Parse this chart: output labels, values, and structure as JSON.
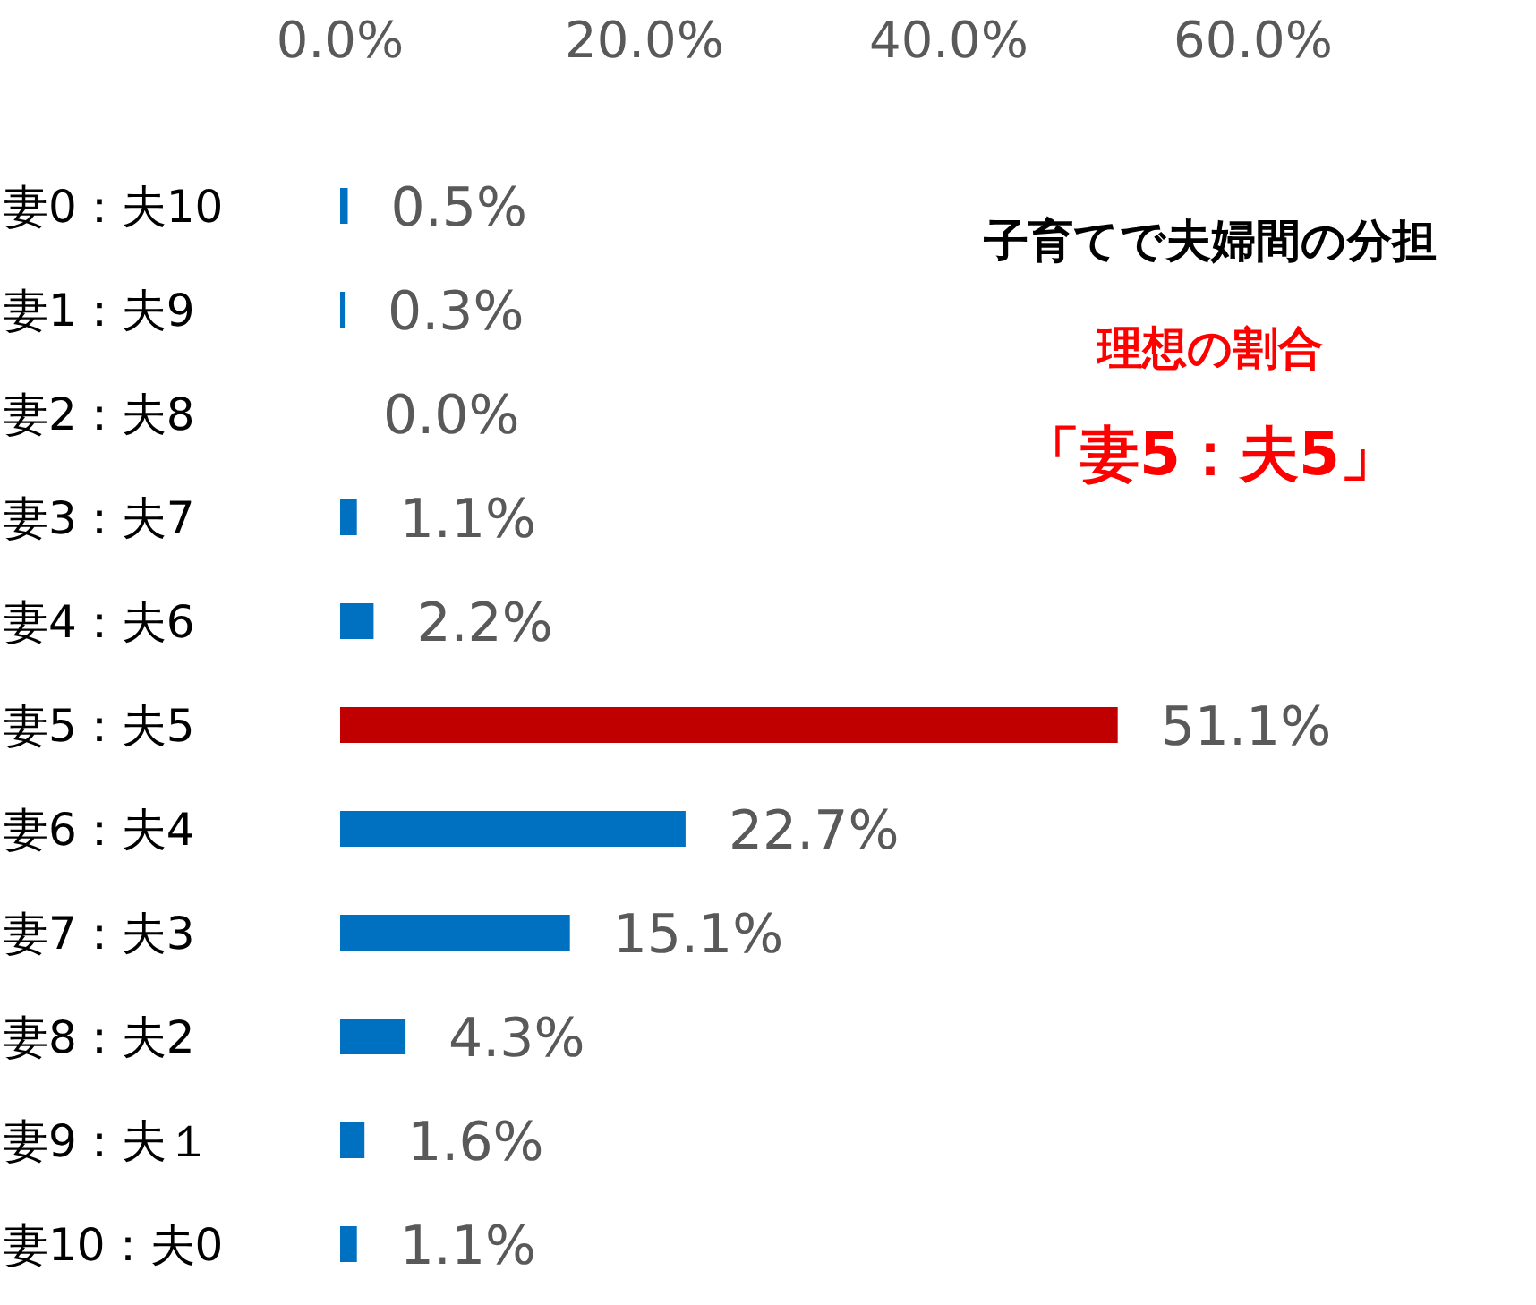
{
  "chart_data": {
    "type": "bar",
    "orientation": "horizontal",
    "title": "子育てで夫婦間の分担",
    "subtitle": "理想の割合",
    "annotations": [
      "「妻5：夫5」"
    ],
    "categories": [
      "妻0：夫10",
      "妻1：夫9",
      "妻2：夫8",
      "妻3：夫7",
      "妻4：夫6",
      "妻5：夫5",
      "妻6：夫4",
      "妻7：夫3",
      "妻8：夫2",
      "妻9：夫１",
      "妻10：夫0"
    ],
    "values": [
      0.5,
      0.3,
      0.0,
      1.1,
      2.2,
      51.1,
      22.7,
      15.1,
      4.3,
      1.6,
      1.1
    ],
    "value_labels": [
      "0.5%",
      "0.3%",
      "0.0%",
      "1.1%",
      "2.2%",
      "51.1%",
      "22.7%",
      "15.1%",
      "4.3%",
      "1.6%",
      "1.1%"
    ],
    "colors": [
      "#0070c0",
      "#0070c0",
      "#0070c0",
      "#0070c0",
      "#0070c0",
      "#c00000",
      "#0070c0",
      "#0070c0",
      "#0070c0",
      "#0070c0",
      "#0070c0"
    ],
    "xlim": [
      0,
      60
    ],
    "xticks": [
      {
        "value": 0,
        "label": "0.0%"
      },
      {
        "value": 20,
        "label": "20.0%"
      },
      {
        "value": 40,
        "label": "40.0%"
      },
      {
        "value": 60,
        "label": "60.0%"
      }
    ],
    "grid": false
  }
}
